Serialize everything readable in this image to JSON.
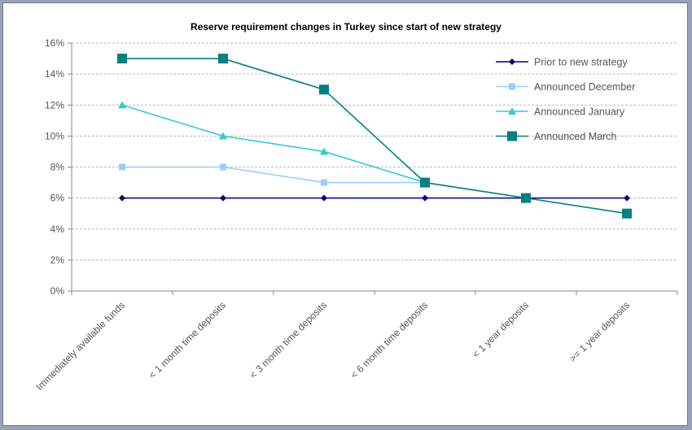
{
  "chart_data": {
    "type": "line",
    "title": "Reserve requirement changes in Turkey since start of new strategy",
    "categories": [
      "Immediately available funds",
      "< 1 month time deposits",
      "< 3 month time deposits",
      "< 6 month time deposits",
      "< 1 year deposits",
      ">= 1 year deposits"
    ],
    "ylim": [
      0,
      16
    ],
    "yticks": [
      "0%",
      "2%",
      "4%",
      "6%",
      "8%",
      "10%",
      "12%",
      "14%",
      "16%"
    ],
    "ytick_values": [
      0,
      2,
      4,
      6,
      8,
      10,
      12,
      14,
      16
    ],
    "grid": "horizontal dashed",
    "legend_position": "top-right",
    "series": [
      {
        "name": "Prior to new strategy",
        "values": [
          6,
          6,
          6,
          6,
          6,
          6
        ],
        "color": "#000080",
        "marker": "diamond"
      },
      {
        "name": "Announced December",
        "values": [
          8,
          8,
          7,
          7,
          null,
          null
        ],
        "color": "#99ccff",
        "marker": "square"
      },
      {
        "name": "Announced January",
        "values": [
          12,
          10,
          9,
          7,
          null,
          null
        ],
        "color": "#33cccc",
        "marker": "triangle"
      },
      {
        "name": "Announced March",
        "values": [
          15,
          15,
          13,
          7,
          6,
          5
        ],
        "color": "#008080",
        "marker": "bigsquare"
      }
    ]
  }
}
